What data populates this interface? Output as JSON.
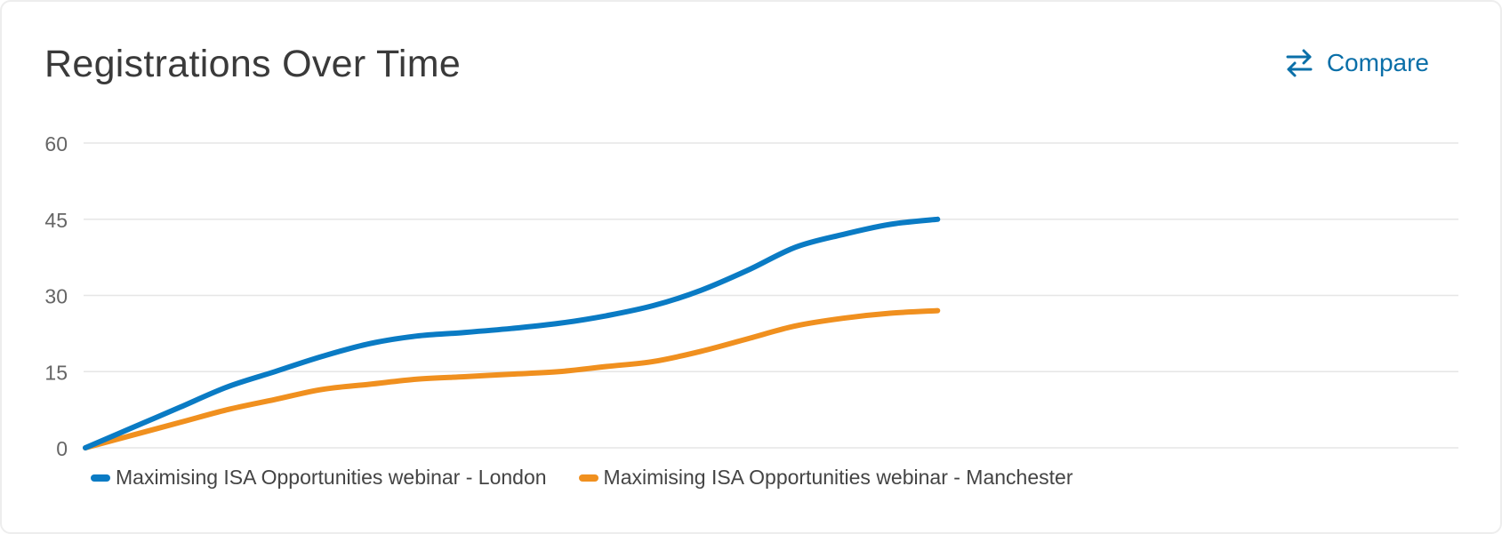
{
  "header": {
    "title": "Registrations Over Time",
    "compare_label": "Compare",
    "compare_icon": "swap-arrows-icon"
  },
  "colors": {
    "accent": "#0a6fa8",
    "grid": "#e6e6e6"
  },
  "chart_data": {
    "type": "line",
    "title": "Registrations Over Time",
    "xlabel": "",
    "ylabel": "",
    "ylim": [
      0,
      60
    ],
    "yticks": [
      0,
      15,
      30,
      45,
      60
    ],
    "grid": true,
    "smooth": true,
    "legend_position": "bottom-left",
    "x": [
      0,
      1,
      2,
      3,
      4,
      5,
      6,
      7,
      8,
      9,
      10,
      11,
      12,
      13,
      14,
      15,
      16,
      17,
      18
    ],
    "x_range": [
      0,
      29
    ],
    "series": [
      {
        "name": "Maximising ISA Opportunities webinar - London",
        "color": "#0a7bc4",
        "values": [
          0,
          4,
          8,
          12,
          15,
          18,
          20.5,
          22,
          22.7,
          23.5,
          24.5,
          26,
          28,
          31,
          35,
          39.5,
          42,
          44,
          45
        ]
      },
      {
        "name": "Maximising ISA Opportunities webinar - Manchester",
        "color": "#f0901f",
        "values": [
          0,
          2.5,
          5,
          7.5,
          9.5,
          11.5,
          12.5,
          13.5,
          14,
          14.5,
          15,
          16,
          17,
          19,
          21.5,
          24,
          25.5,
          26.5,
          27
        ]
      }
    ]
  }
}
